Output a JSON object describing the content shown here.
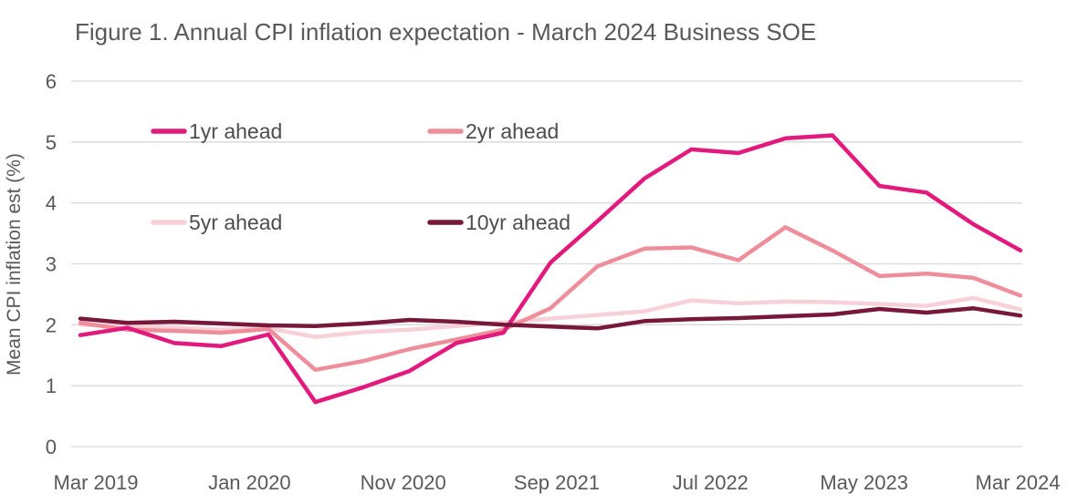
{
  "figure": {
    "title": "Figure 1. Annual CPI inflation expectation - March 2024 Business SOE"
  },
  "colors": {
    "series_1yr": "#E31A7D",
    "series_2yr": "#EF8E9B",
    "series_5yr": "#F8D0D8",
    "series_10yr": "#77173A",
    "grid": "#D9D9D9",
    "text": "#595959",
    "background": "#FFFFFF"
  },
  "chart_data": {
    "type": "line",
    "title": "Figure 1. Annual CPI inflation expectation - March 2024 Business SOE",
    "xlabel": "",
    "ylabel": "Mean CPI inflation est (%)",
    "ylim": [
      0,
      6
    ],
    "yticks": [
      0,
      1,
      2,
      3,
      4,
      5,
      6
    ],
    "grid": "horizontal",
    "legend_position": "inside-top-left-2x2",
    "xtick_labels": [
      "Mar 2019",
      "Jan 2020",
      "Nov 2020",
      "Sep 2021",
      "Jul 2022",
      "May 2023",
      "Mar 2024"
    ],
    "x_quarters": [
      "Mar 2019",
      "Jun 2019",
      "Sep 2019",
      "Dec 2019",
      "Mar 2020",
      "Jun 2020",
      "Sep 2020",
      "Dec 2020",
      "Mar 2021",
      "Jun 2021",
      "Sep 2021",
      "Dec 2021",
      "Mar 2022",
      "Jun 2022",
      "Sep 2022",
      "Dec 2022",
      "Mar 2023",
      "Jun 2023",
      "Sep 2023",
      "Dec 2023",
      "Mar 2024"
    ],
    "series": [
      {
        "name": "1yr ahead",
        "color": "#E31A7D",
        "values": [
          1.83,
          1.95,
          1.7,
          1.65,
          1.84,
          0.73,
          0.97,
          1.24,
          1.7,
          1.87,
          3.02,
          3.7,
          4.4,
          4.88,
          4.82,
          5.06,
          5.11,
          4.28,
          4.17,
          3.65,
          3.22
        ]
      },
      {
        "name": "2yr ahead",
        "color": "#EF8E9B",
        "values": [
          2.03,
          1.92,
          1.9,
          1.87,
          1.93,
          1.26,
          1.4,
          1.6,
          1.76,
          1.92,
          2.27,
          2.96,
          3.25,
          3.27,
          3.06,
          3.6,
          3.22,
          2.8,
          2.84,
          2.77,
          2.48
        ]
      },
      {
        "name": "5yr ahead",
        "color": "#F8D0D8",
        "values": [
          2.0,
          1.97,
          1.95,
          1.92,
          1.94,
          1.8,
          1.88,
          1.92,
          1.98,
          2.04,
          2.1,
          2.16,
          2.22,
          2.4,
          2.35,
          2.38,
          2.37,
          2.34,
          2.31,
          2.44,
          2.25
        ]
      },
      {
        "name": "10yr ahead",
        "color": "#77173A",
        "values": [
          2.1,
          2.03,
          2.05,
          2.02,
          1.99,
          1.98,
          2.02,
          2.08,
          2.05,
          2.0,
          1.97,
          1.94,
          2.06,
          2.09,
          2.11,
          2.14,
          2.17,
          2.26,
          2.2,
          2.27,
          2.15
        ]
      }
    ]
  }
}
